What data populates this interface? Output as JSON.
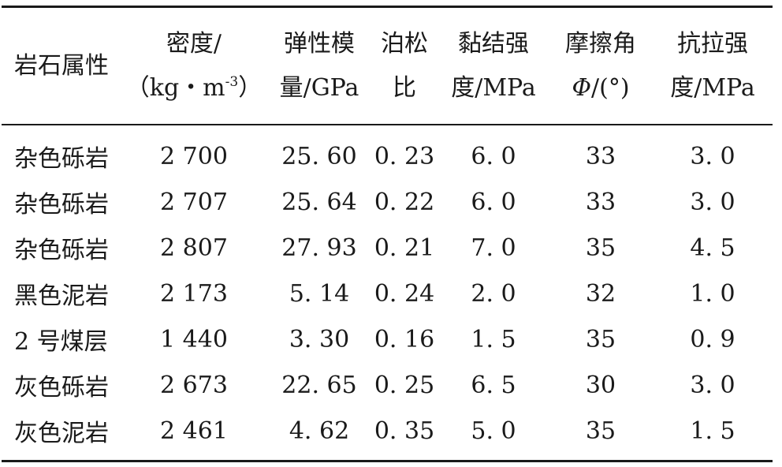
{
  "table": {
    "headers": [
      {
        "lines": [
          "岩石属性"
        ]
      },
      {
        "lines": [
          "密度/",
          "（kg・m",
          "-3",
          "）"
        ]
      },
      {
        "lines": [
          "弹性模",
          "量/GPa"
        ]
      },
      {
        "lines": [
          "泊松",
          "比"
        ]
      },
      {
        "lines": [
          "黏结强",
          "度/MPa"
        ]
      },
      {
        "lines": [
          "摩擦角",
          "Φ",
          "/(°)"
        ]
      },
      {
        "lines": [
          "抗拉强",
          "度/MPa"
        ]
      }
    ],
    "rows": [
      [
        "杂色砾岩",
        "2 700",
        "25. 60",
        "0. 23",
        "6. 0",
        "33",
        "3. 0"
      ],
      [
        "杂色砾岩",
        "2 707",
        "25. 64",
        "0. 22",
        "6. 0",
        "33",
        "3. 0"
      ],
      [
        "杂色砾岩",
        "2 807",
        "27. 93",
        "0. 21",
        "7. 0",
        "35",
        "4. 5"
      ],
      [
        "黑色泥岩",
        "2 173",
        "5. 14",
        "0. 24",
        "2. 0",
        "32",
        "1. 0"
      ],
      [
        "2 号煤层",
        "1 440",
        "3. 30",
        "0. 16",
        "1. 5",
        "35",
        "0. 9"
      ],
      [
        "灰色砾岩",
        "2 673",
        "22. 65",
        "0. 25",
        "6. 5",
        "30",
        "3. 0"
      ],
      [
        "灰色泥岩",
        "2 461",
        "4. 62",
        "0. 35",
        "5. 0",
        "35",
        "1. 5"
      ]
    ]
  }
}
